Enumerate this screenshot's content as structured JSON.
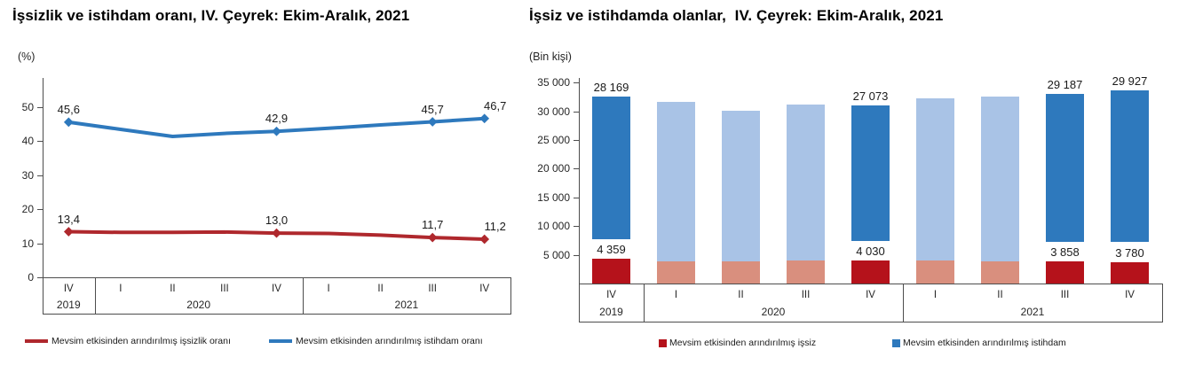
{
  "page_background": "#ffffff",
  "axis_color": "#4d4d4d",
  "chart_data": [
    {
      "type": "line",
      "title": "İşsizlik ve istihdam oranı, IV. Çeyrek: Ekim-Aralık, 2021",
      "unit": "(%)",
      "categories": [
        "IV",
        "I",
        "II",
        "III",
        "IV",
        "I",
        "II",
        "III",
        "IV"
      ],
      "year_groups": [
        {
          "label": "2019",
          "span": 1
        },
        {
          "label": "2020",
          "span": 4
        },
        {
          "label": "2021",
          "span": 4
        }
      ],
      "yticks": [
        0,
        10,
        20,
        30,
        40,
        50
      ],
      "ytick_labels": [
        "0",
        "10",
        "20",
        "30",
        "40",
        "50"
      ],
      "ylim": [
        0,
        55
      ],
      "grid": false,
      "legend_position": "bottom",
      "series": [
        {
          "name": "Mevsim etkisinden arındırılmış işsizlik oranı",
          "color": "#AF282D",
          "values": [
            13.4,
            13.2,
            13.2,
            13.3,
            13.0,
            12.9,
            12.4,
            11.7,
            11.2
          ],
          "labeled_points": {
            "0": "13,4",
            "4": "13,0",
            "7": "11,7",
            "8": "11,2"
          }
        },
        {
          "name": "Mevsim etkisinden arındırılmış istihdam oranı",
          "color": "#2E79BD",
          "values": [
            45.6,
            43.5,
            41.4,
            42.3,
            42.9,
            43.8,
            44.8,
            45.7,
            46.7
          ],
          "labeled_points": {
            "0": "45,6",
            "4": "42,9",
            "7": "45,7",
            "8": "46,7"
          }
        }
      ]
    },
    {
      "type": "bar",
      "stacked": true,
      "title": "İşsiz ve istihdamda olanlar,  IV. Çeyrek: Ekim-Aralık, 2021",
      "unit": "(Bin kişi)",
      "categories": [
        "IV",
        "I",
        "II",
        "III",
        "IV",
        "I",
        "II",
        "III",
        "IV"
      ],
      "year_groups": [
        {
          "label": "2019",
          "span": 1
        },
        {
          "label": "2020",
          "span": 4
        },
        {
          "label": "2021",
          "span": 4
        }
      ],
      "yticks": [
        5000,
        10000,
        15000,
        20000,
        25000,
        30000,
        35000
      ],
      "ytick_labels": [
        "5 000",
        "10 000",
        "15 000",
        "20 000",
        "25 000",
        "30 000",
        "35 000"
      ],
      "ylim": [
        0,
        35000
      ],
      "grid": false,
      "legend_position": "bottom",
      "highlighted_indices": [
        0,
        4,
        7,
        8
      ],
      "series": [
        {
          "name": "Mevsim etkisinden arındırılmış işsiz",
          "color_highlight": "#B5121B",
          "color_muted": "#D98F7E",
          "values": [
            4359,
            3900,
            3800,
            3950,
            4030,
            3950,
            3800,
            3858,
            3780
          ],
          "labeled_points": {
            "0": "4 359",
            "4": "4 030",
            "7": "3 858",
            "8": "3 780"
          }
        },
        {
          "name": "Mevsim etkisinden arındırılmış istihdam",
          "color_highlight": "#2E79BD",
          "color_muted": "#A9C3E6",
          "values": [
            28169,
            27700,
            26300,
            27200,
            27073,
            28300,
            28700,
            29187,
            29927
          ],
          "labeled_points": {
            "0": "28 169",
            "4": "27 073",
            "7": "29 187",
            "8": "29 927"
          }
        }
      ]
    }
  ]
}
